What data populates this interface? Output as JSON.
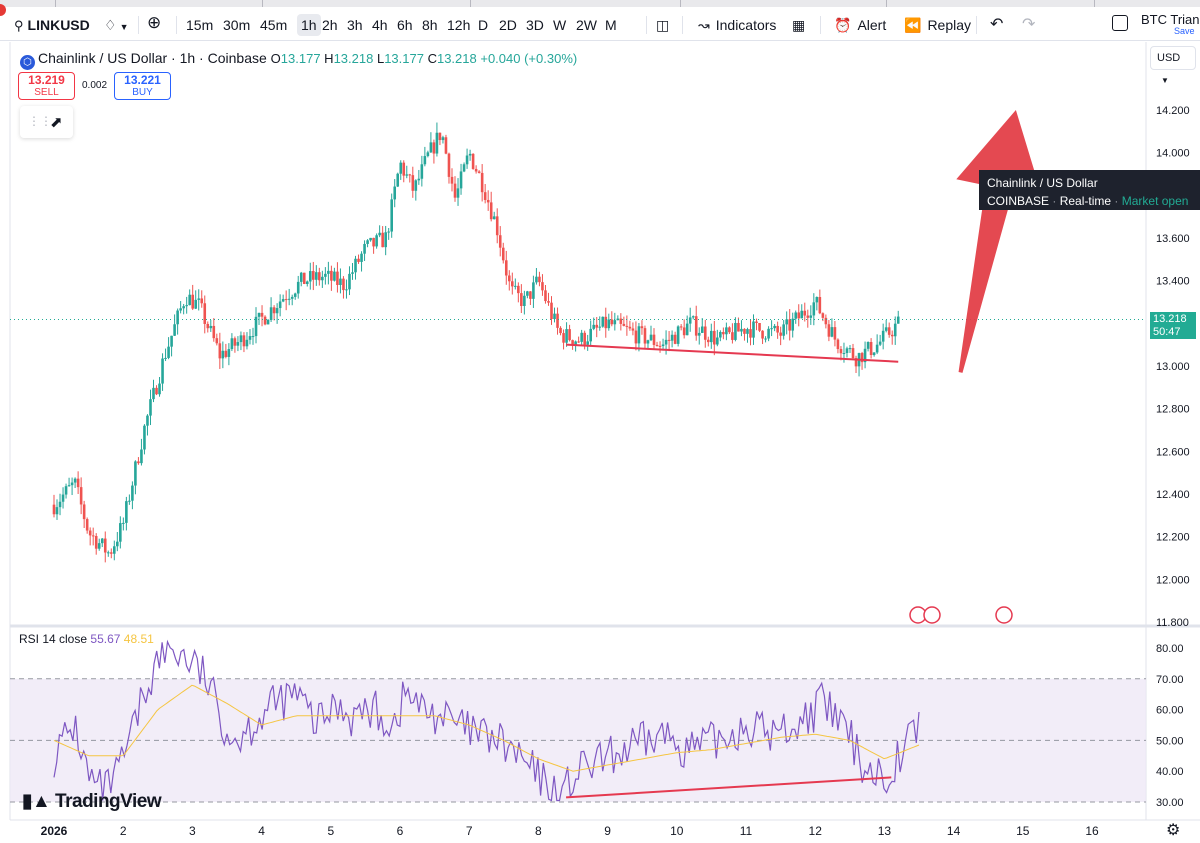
{
  "toolbar": {
    "symbol": "LINKUSD",
    "intervals": [
      "15m",
      "30m",
      "45m",
      "1h",
      "2h",
      "3h",
      "4h",
      "6h",
      "8h",
      "12h",
      "D",
      "2D",
      "3D",
      "W",
      "2W",
      "M"
    ],
    "active_interval": "1h",
    "indicators_label": "Indicators",
    "alert_label": "Alert",
    "replay_label": "Replay",
    "layout_name": "BTC Triang",
    "save_label": "Save"
  },
  "legend": {
    "title": "Chainlink / US Dollar · 1h · Coinbase",
    "o_label": "O",
    "o": "13.177",
    "h_label": "H",
    "h": "13.218",
    "l_label": "L",
    "l": "13.177",
    "c_label": "C",
    "c": "13.218",
    "change": "+0.040 (+0.30%)"
  },
  "trade": {
    "sell_price": "13.219",
    "sell_label": "SELL",
    "spread": "0.002",
    "buy_price": "13.221",
    "buy_label": "BUY"
  },
  "tooltip": {
    "line1": "Chainlink / US Dollar",
    "exchange": "COINBASE",
    "mode": "Real-time",
    "status": "Market open"
  },
  "currency": "USD",
  "last_price": {
    "price": "13.218",
    "countdown": "50:47"
  },
  "rsi_legend": {
    "name": "RSI 14 close",
    "value": "55.67",
    "ma_value": "48.51"
  },
  "brand": "TradingView",
  "colors": {
    "up": "#26a69a",
    "down": "#ef5350",
    "rsi": "#7e57c2",
    "rsi_ma": "#f5c542",
    "annotation": "#e53950",
    "band": "#ede7f6"
  },
  "chart_data": [
    {
      "type": "candlestick",
      "ylim": [
        11.8,
        14.3
      ],
      "price_ticks": [
        "14.200",
        "14.000",
        "13.600",
        "13.400",
        "13.000",
        "12.800",
        "12.600",
        "12.400",
        "12.200",
        "12.000",
        "11.800"
      ],
      "x_ticks": [
        "2026",
        "2",
        "3",
        "4",
        "5",
        "6",
        "7",
        "8",
        "9",
        "10",
        "11",
        "12",
        "13",
        "14",
        "15",
        "16"
      ],
      "path": [
        [
          1.0,
          12.35
        ],
        [
          1.3,
          12.45
        ],
        [
          1.5,
          12.22
        ],
        [
          1.8,
          12.12
        ],
        [
          2.0,
          12.26
        ],
        [
          2.3,
          12.7
        ],
        [
          2.6,
          13.05
        ],
        [
          2.9,
          13.33
        ],
        [
          3.1,
          13.28
        ],
        [
          3.4,
          13.05
        ],
        [
          3.7,
          13.12
        ],
        [
          4.0,
          13.22
        ],
        [
          4.3,
          13.32
        ],
        [
          4.6,
          13.4
        ],
        [
          4.9,
          13.42
        ],
        [
          5.2,
          13.38
        ],
        [
          5.5,
          13.55
        ],
        [
          5.8,
          13.6
        ],
        [
          6.0,
          13.95
        ],
        [
          6.2,
          13.82
        ],
        [
          6.4,
          13.98
        ],
        [
          6.6,
          14.1
        ],
        [
          6.8,
          13.78
        ],
        [
          7.0,
          14.0
        ],
        [
          7.2,
          13.85
        ],
        [
          7.4,
          13.65
        ],
        [
          7.6,
          13.35
        ],
        [
          7.8,
          13.3
        ],
        [
          8.0,
          13.4
        ],
        [
          8.3,
          13.15
        ],
        [
          8.6,
          13.12
        ],
        [
          9.0,
          13.2
        ],
        [
          9.4,
          13.15
        ],
        [
          9.8,
          13.1
        ],
        [
          10.2,
          13.2
        ],
        [
          10.6,
          13.12
        ],
        [
          11.0,
          13.18
        ],
        [
          11.5,
          13.15
        ],
        [
          12.0,
          13.3
        ],
        [
          12.3,
          13.12
        ],
        [
          12.6,
          13.04
        ],
        [
          12.9,
          13.1
        ],
        [
          13.2,
          13.2
        ]
      ],
      "support_line": {
        "from": [
          8.4,
          13.1
        ],
        "to": [
          13.2,
          13.02
        ]
      },
      "arrow": {
        "from": [
          14.1,
          12.97
        ],
        "to": [
          14.9,
          14.2
        ]
      },
      "last": 13.218
    },
    {
      "type": "line",
      "name": "RSI 14 close",
      "ylim": [
        27,
        84
      ],
      "y_ticks": [
        "80.00",
        "70.00",
        "60.00",
        "50.00",
        "40.00",
        "30.00"
      ],
      "band": [
        30,
        70
      ],
      "midline": 50,
      "rsi_path": [
        [
          1.0,
          45
        ],
        [
          1.3,
          55
        ],
        [
          1.5,
          38
        ],
        [
          1.7,
          33
        ],
        [
          1.9,
          38
        ],
        [
          2.1,
          50
        ],
        [
          2.3,
          65
        ],
        [
          2.5,
          76
        ],
        [
          2.7,
          80
        ],
        [
          3.0,
          75
        ],
        [
          3.2,
          70
        ],
        [
          3.4,
          58
        ],
        [
          3.6,
          50
        ],
        [
          3.9,
          56
        ],
        [
          4.2,
          62
        ],
        [
          4.5,
          65
        ],
        [
          4.8,
          55
        ],
        [
          5.1,
          62
        ],
        [
          5.3,
          58
        ],
        [
          5.6,
          60
        ],
        [
          5.9,
          55
        ],
        [
          6.1,
          66
        ],
        [
          6.3,
          60
        ],
        [
          6.6,
          58
        ],
        [
          6.8,
          55
        ],
        [
          7.1,
          52
        ],
        [
          7.4,
          50
        ],
        [
          7.7,
          45
        ],
        [
          8.0,
          38
        ],
        [
          8.3,
          32
        ],
        [
          8.6,
          40
        ],
        [
          9.0,
          44
        ],
        [
          9.4,
          48
        ],
        [
          9.8,
          52
        ],
        [
          10.2,
          47
        ],
        [
          10.6,
          50
        ],
        [
          11.0,
          55
        ],
        [
          11.4,
          52
        ],
        [
          11.8,
          56
        ],
        [
          12.1,
          62
        ],
        [
          12.4,
          55
        ],
        [
          12.7,
          42
        ],
        [
          13.0,
          38
        ],
        [
          13.2,
          45
        ],
        [
          13.5,
          55.67
        ]
      ],
      "ma_path": [
        [
          1.0,
          50
        ],
        [
          1.5,
          45
        ],
        [
          2.0,
          45
        ],
        [
          2.5,
          60
        ],
        [
          3.0,
          68
        ],
        [
          3.5,
          62
        ],
        [
          4.0,
          55
        ],
        [
          4.5,
          58
        ],
        [
          5.0,
          58
        ],
        [
          5.5,
          58
        ],
        [
          6.0,
          58
        ],
        [
          6.5,
          58
        ],
        [
          7.0,
          55
        ],
        [
          7.5,
          50
        ],
        [
          8.0,
          44
        ],
        [
          8.5,
          40
        ],
        [
          9.0,
          42
        ],
        [
          9.5,
          44
        ],
        [
          10.0,
          46
        ],
        [
          10.5,
          47
        ],
        [
          11.0,
          49
        ],
        [
          11.5,
          51
        ],
        [
          12.0,
          52
        ],
        [
          12.5,
          50
        ],
        [
          13.0,
          44
        ],
        [
          13.5,
          48.51
        ]
      ],
      "support_line": {
        "from": [
          8.4,
          31.5
        ],
        "to": [
          13.1,
          38
        ]
      }
    }
  ]
}
